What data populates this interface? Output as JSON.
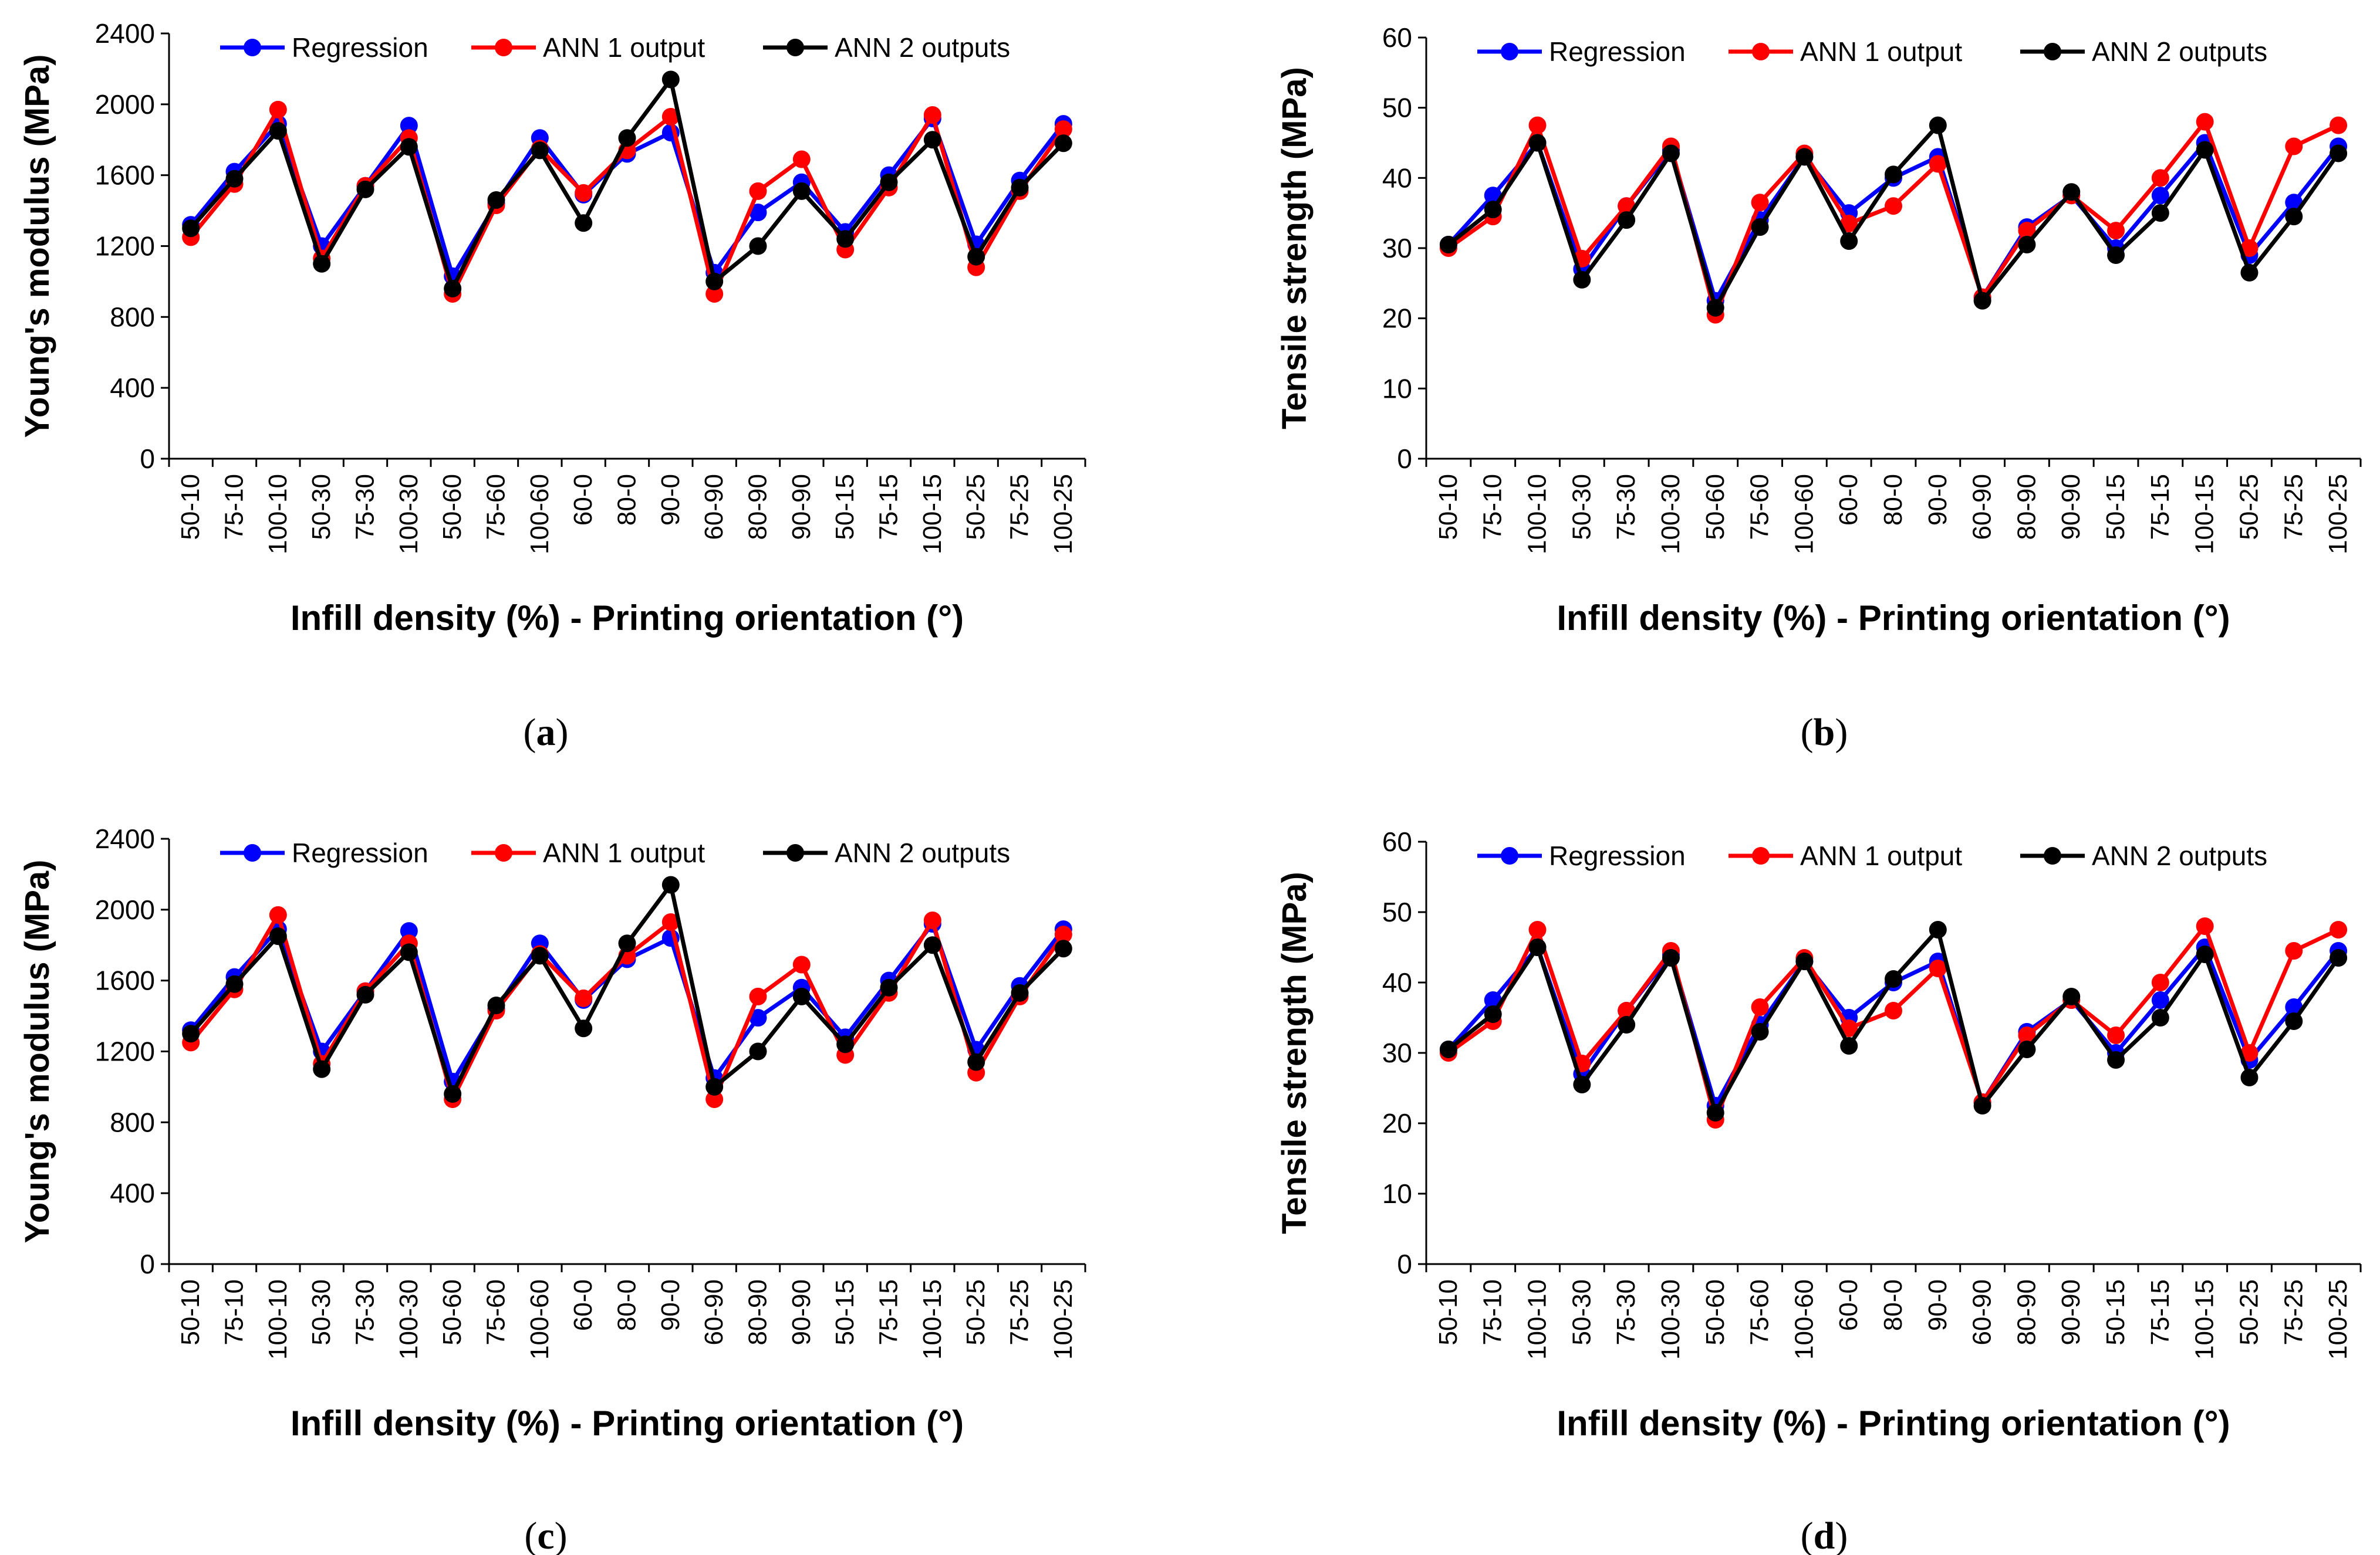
{
  "series_colors": {
    "Regression": "#0000ff",
    "ANN 1 output": "#ff0000",
    "ANN 2 outputs": "#000000"
  },
  "chart_data": [
    {
      "type": "line",
      "panel_label": "a",
      "xlabel": "Infill density (%) - Printing orientation (°)",
      "ylabel": "Young's modulus (MPa)",
      "ylim": [
        0,
        2400
      ],
      "yticks": [
        0,
        400,
        800,
        1200,
        1600,
        2000,
        2400
      ],
      "legend_position": "top",
      "categories": [
        "50-10",
        "75-10",
        "100-10",
        "50-30",
        "75-30",
        "100-30",
        "50-60",
        "75-60",
        "100-60",
        "60-0",
        "80-0",
        "90-0",
        "60-90",
        "80-90",
        "90-90",
        "50-15",
        "75-15",
        "100-15",
        "50-25",
        "75-25",
        "100-25"
      ],
      "series": [
        {
          "name": "Regression",
          "values": [
            1320,
            1620,
            1890,
            1200,
            1540,
            1880,
            1030,
            1440,
            1810,
            1490,
            1720,
            1840,
            1050,
            1390,
            1560,
            1280,
            1600,
            1920,
            1210,
            1570,
            1890
          ]
        },
        {
          "name": "ANN 1 output",
          "values": [
            1250,
            1550,
            1970,
            1130,
            1540,
            1810,
            930,
            1430,
            1750,
            1500,
            1740,
            1930,
            930,
            1510,
            1690,
            1180,
            1530,
            1940,
            1080,
            1510,
            1860
          ]
        },
        {
          "name": "ANN 2 outputs",
          "values": [
            1300,
            1580,
            1850,
            1100,
            1520,
            1760,
            960,
            1460,
            1740,
            1330,
            1810,
            2140,
            1000,
            1200,
            1510,
            1240,
            1560,
            1800,
            1140,
            1530,
            1780
          ]
        }
      ]
    },
    {
      "type": "line",
      "panel_label": "b",
      "xlabel": "Infill density (%) - Printing orientation (°)",
      "ylabel": "Tensile strength (MPa)",
      "ylim": [
        0,
        60
      ],
      "yticks": [
        0,
        10,
        20,
        30,
        40,
        50,
        60
      ],
      "legend_position": "top",
      "categories": [
        "50-10",
        "75-10",
        "100-10",
        "50-30",
        "75-30",
        "100-30",
        "50-60",
        "75-60",
        "100-60",
        "60-0",
        "80-0",
        "90-0",
        "60-90",
        "80-90",
        "90-90",
        "50-15",
        "75-15",
        "100-15",
        "50-25",
        "75-25",
        "100-25"
      ],
      "series": [
        {
          "name": "Regression",
          "values": [
            30.5,
            37.5,
            45.0,
            27.0,
            36.0,
            44.0,
            22.5,
            34.0,
            43.0,
            35.0,
            40.0,
            43.0,
            23.0,
            33.0,
            37.5,
            30.0,
            37.5,
            45.0,
            29.0,
            36.5,
            44.5
          ]
        },
        {
          "name": "ANN 1 output",
          "values": [
            30.0,
            34.5,
            47.5,
            28.5,
            36.0,
            44.5,
            20.5,
            36.5,
            43.5,
            33.5,
            36.0,
            42.0,
            23.0,
            32.5,
            37.5,
            32.5,
            40.0,
            48.0,
            30.0,
            44.5,
            47.5
          ]
        },
        {
          "name": "ANN 2 outputs",
          "values": [
            30.5,
            35.5,
            45.0,
            25.5,
            34.0,
            43.5,
            21.5,
            33.0,
            43.0,
            31.0,
            40.5,
            47.5,
            22.5,
            30.5,
            38.0,
            29.0,
            35.0,
            44.0,
            26.5,
            34.5,
            43.5
          ]
        }
      ]
    },
    {
      "type": "line",
      "panel_label": "c",
      "xlabel": "Infill density (%) - Printing orientation (°)",
      "ylabel": "Young's modulus (MPa)",
      "ylim": [
        0,
        2400
      ],
      "yticks": [
        0,
        400,
        800,
        1200,
        1600,
        2000,
        2400
      ],
      "legend_position": "top",
      "categories": [
        "50-10",
        "75-10",
        "100-10",
        "50-30",
        "75-30",
        "100-30",
        "50-60",
        "75-60",
        "100-60",
        "60-0",
        "80-0",
        "90-0",
        "60-90",
        "80-90",
        "90-90",
        "50-15",
        "75-15",
        "100-15",
        "50-25",
        "75-25",
        "100-25"
      ],
      "series": [
        {
          "name": "Regression",
          "values": [
            1320,
            1620,
            1890,
            1200,
            1540,
            1880,
            1030,
            1440,
            1810,
            1490,
            1720,
            1840,
            1050,
            1390,
            1560,
            1280,
            1600,
            1920,
            1210,
            1570,
            1890
          ]
        },
        {
          "name": "ANN 1 output",
          "values": [
            1250,
            1550,
            1970,
            1130,
            1540,
            1810,
            930,
            1430,
            1750,
            1500,
            1740,
            1930,
            930,
            1510,
            1690,
            1180,
            1530,
            1940,
            1080,
            1510,
            1860
          ]
        },
        {
          "name": "ANN 2 outputs",
          "values": [
            1300,
            1580,
            1850,
            1100,
            1520,
            1760,
            960,
            1460,
            1740,
            1330,
            1810,
            2140,
            1000,
            1200,
            1510,
            1240,
            1560,
            1800,
            1140,
            1530,
            1780
          ]
        }
      ]
    },
    {
      "type": "line",
      "panel_label": "d",
      "xlabel": "Infill density (%) - Printing orientation (°)",
      "ylabel": "Tensile strength (MPa)",
      "ylim": [
        0,
        60
      ],
      "yticks": [
        0,
        10,
        20,
        30,
        40,
        50,
        60
      ],
      "legend_position": "top",
      "categories": [
        "50-10",
        "75-10",
        "100-10",
        "50-30",
        "75-30",
        "100-30",
        "50-60",
        "75-60",
        "100-60",
        "60-0",
        "80-0",
        "90-0",
        "60-90",
        "80-90",
        "90-90",
        "50-15",
        "75-15",
        "100-15",
        "50-25",
        "75-25",
        "100-25"
      ],
      "series": [
        {
          "name": "Regression",
          "values": [
            30.5,
            37.5,
            45.0,
            27.0,
            36.0,
            44.0,
            22.5,
            34.0,
            43.0,
            35.0,
            40.0,
            43.0,
            23.0,
            33.0,
            37.5,
            30.0,
            37.5,
            45.0,
            29.0,
            36.5,
            44.5
          ]
        },
        {
          "name": "ANN 1 output",
          "values": [
            30.0,
            34.5,
            47.5,
            28.5,
            36.0,
            44.5,
            20.5,
            36.5,
            43.5,
            33.5,
            36.0,
            42.0,
            23.0,
            32.5,
            37.5,
            32.5,
            40.0,
            48.0,
            30.0,
            44.5,
            47.5
          ]
        },
        {
          "name": "ANN 2 outputs",
          "values": [
            30.5,
            35.5,
            45.0,
            25.5,
            34.0,
            43.5,
            21.5,
            33.0,
            43.0,
            31.0,
            40.5,
            47.5,
            22.5,
            30.5,
            38.0,
            29.0,
            35.0,
            44.0,
            26.5,
            34.5,
            43.5
          ]
        }
      ]
    }
  ]
}
